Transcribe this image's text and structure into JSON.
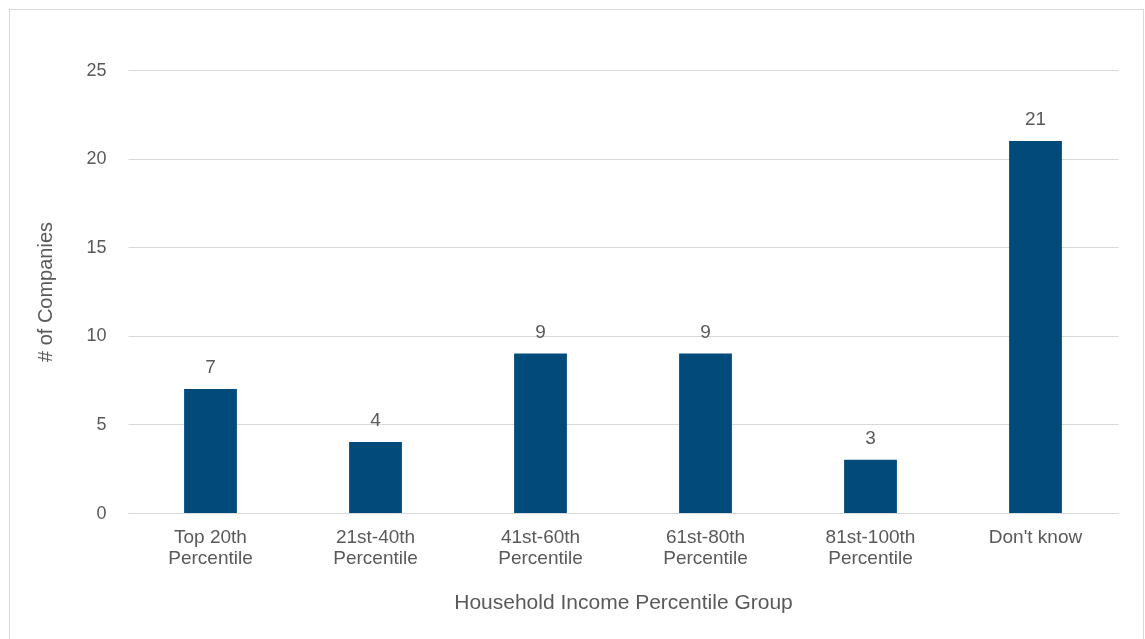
{
  "chart_data": {
    "type": "bar",
    "xlabel": "Household Income Percentile Group",
    "ylabel": "# of Companies",
    "categories": [
      "Top 20th Percentile",
      "21st-40th Percentile",
      "41st-60th Percentile",
      "61st-80th Percentile",
      "81st-100th Percentile",
      "Don't know"
    ],
    "values": [
      7,
      4,
      9,
      9,
      3,
      21
    ],
    "color": "#004b7a",
    "ylim": [
      0,
      25
    ],
    "yticks": [
      0,
      5,
      10,
      15,
      20,
      25
    ],
    "grid": "y",
    "data_labels": true
  }
}
